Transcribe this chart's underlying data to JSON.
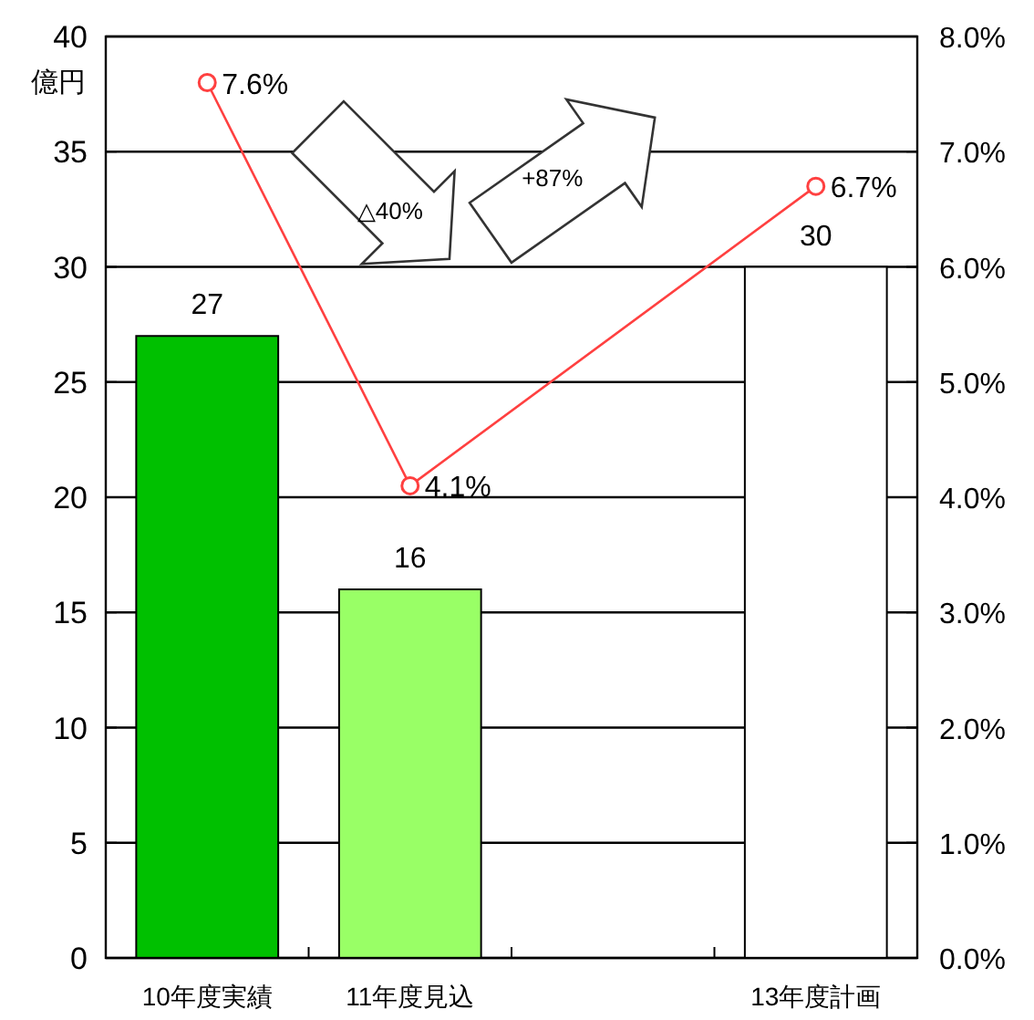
{
  "chart_data": {
    "type": "bar",
    "ylabel": "億円",
    "categories": [
      "10年度実績",
      "11年度見込",
      null,
      "13年度計画"
    ],
    "series": [
      {
        "colors": [
          "#00c000",
          "#99ff66",
          null,
          "#ffffff"
        ],
        "values": [
          27,
          16,
          null,
          30
        ],
        "value_labels": [
          "27",
          "16",
          null,
          "30"
        ]
      },
      {
        "type": "line",
        "axis": "y2",
        "color": "#ff4040",
        "marker": "circle",
        "values": [
          7.6,
          4.1,
          null,
          6.7
        ],
        "value_labels": [
          "7.6%",
          "4.1%",
          null,
          "6.7%"
        ]
      }
    ],
    "ylim": [
      0,
      40
    ],
    "yticks": [
      0,
      5,
      10,
      15,
      20,
      25,
      30,
      35,
      40
    ],
    "y2lim": [
      0,
      8
    ],
    "y2ticks": [
      {
        "value": 0,
        "label": "0.0%"
      },
      {
        "value": 1,
        "label": "1.0%"
      },
      {
        "value": 2,
        "label": "2.0%"
      },
      {
        "value": 3,
        "label": "3.0%"
      },
      {
        "value": 4,
        "label": "4.0%"
      },
      {
        "value": 5,
        "label": "5.0%"
      },
      {
        "value": 6,
        "label": "6.0%"
      },
      {
        "value": 7,
        "label": "7.0%"
      },
      {
        "value": 8,
        "label": "8.0%"
      }
    ],
    "grid": "y",
    "annotations": [
      "△40%",
      "+87%"
    ]
  }
}
